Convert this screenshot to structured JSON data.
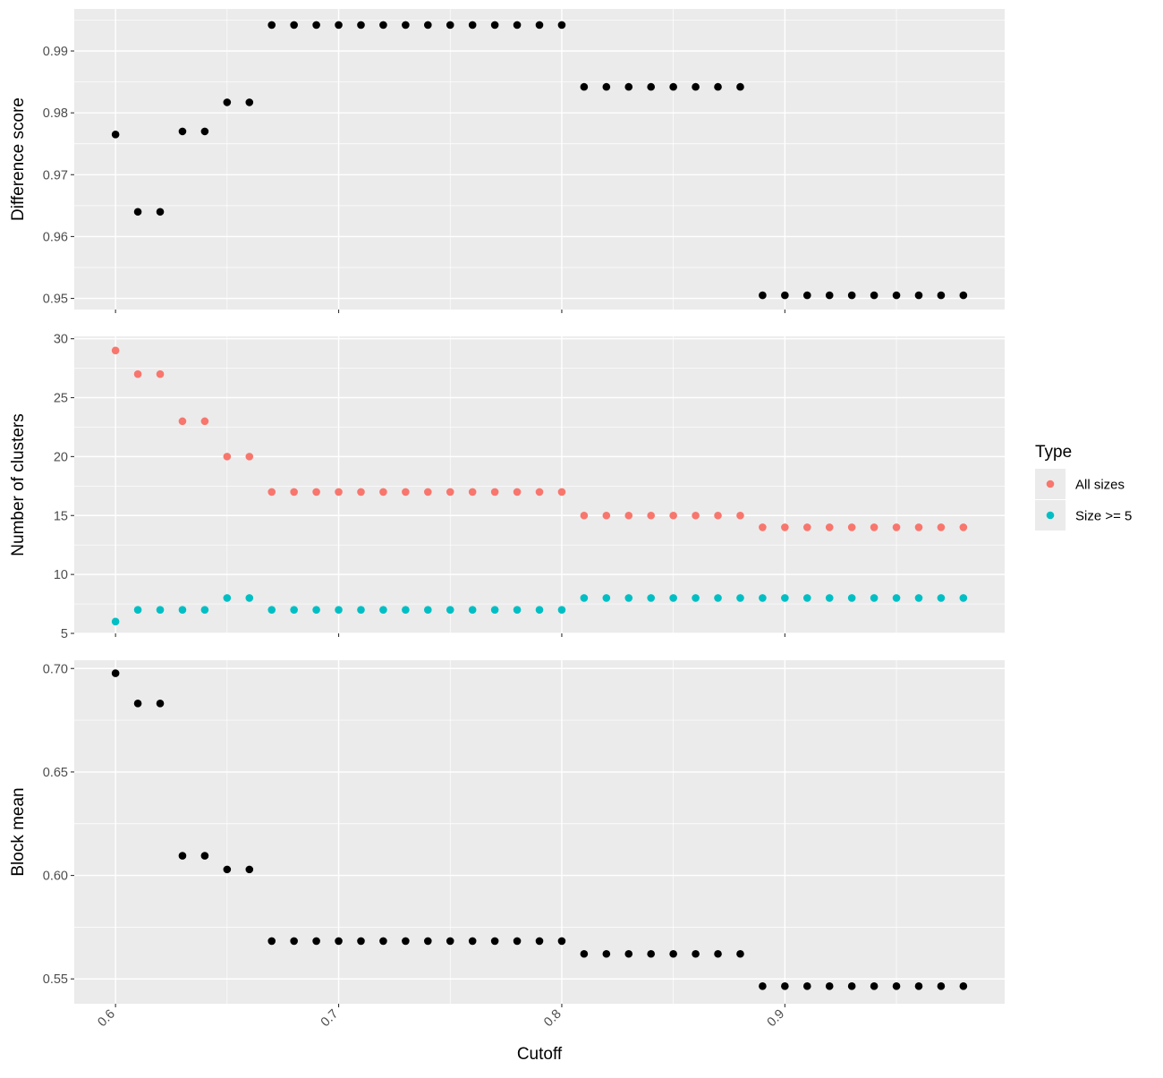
{
  "chart_data": {
    "type": "scatter",
    "xlabel": "Cutoff",
    "x_ticks": [
      "0.6",
      "0.7",
      "0.8",
      "0.9"
    ],
    "xlim": [
      0.5815,
      0.9985
    ],
    "grid": true,
    "panel_background": "#EBEBEB",
    "gridline_color": "#FFFFFF",
    "x": [
      0.6,
      0.61,
      0.62,
      0.63,
      0.64,
      0.65,
      0.66,
      0.67,
      0.68,
      0.69,
      0.7,
      0.71,
      0.72,
      0.73,
      0.74,
      0.75,
      0.76,
      0.77,
      0.78,
      0.79,
      0.8,
      0.81,
      0.82,
      0.83,
      0.84,
      0.85,
      0.86,
      0.87,
      0.88,
      0.89,
      0.9,
      0.91,
      0.92,
      0.93,
      0.94,
      0.95,
      0.96,
      0.97,
      0.98
    ],
    "panels": [
      {
        "ylabel": "Difference score",
        "ylim": [
          0.9482,
          0.9968
        ],
        "y_ticks": [
          "0.95",
          "0.96",
          "0.97",
          "0.98",
          "0.99"
        ],
        "series": [
          {
            "color": "#000000",
            "values": [
              0.9765,
              0.964,
              0.964,
              0.977,
              0.977,
              0.9817,
              0.9817,
              0.9942,
              0.9942,
              0.9942,
              0.9942,
              0.9942,
              0.9942,
              0.9942,
              0.9942,
              0.9942,
              0.9942,
              0.9942,
              0.9942,
              0.9942,
              0.9942,
              0.9842,
              0.9842,
              0.9842,
              0.9842,
              0.9842,
              0.9842,
              0.9842,
              0.9842,
              0.9505,
              0.9505,
              0.9505,
              0.9505,
              0.9505,
              0.9505,
              0.9505,
              0.9505,
              0.9505,
              0.9505
            ]
          }
        ]
      },
      {
        "ylabel": "Number of clusters",
        "ylim": [
          5,
          30.2
        ],
        "y_ticks": [
          "5",
          "10",
          "15",
          "20",
          "25",
          "30"
        ],
        "series": [
          {
            "name": "All sizes",
            "color": "#F8766D",
            "values": [
              29,
              27,
              27,
              23,
              23,
              20,
              20,
              17,
              17,
              17,
              17,
              17,
              17,
              17,
              17,
              17,
              17,
              17,
              17,
              17,
              17,
              15,
              15,
              15,
              15,
              15,
              15,
              15,
              15,
              14,
              14,
              14,
              14,
              14,
              14,
              14,
              14,
              14,
              14
            ]
          },
          {
            "name": "Size >= 5",
            "color": "#00BFC4",
            "values": [
              6,
              7,
              7,
              7,
              7,
              8,
              8,
              7,
              7,
              7,
              7,
              7,
              7,
              7,
              7,
              7,
              7,
              7,
              7,
              7,
              7,
              8,
              8,
              8,
              8,
              8,
              8,
              8,
              8,
              8,
              8,
              8,
              8,
              8,
              8,
              8,
              8,
              8,
              8
            ]
          }
        ]
      },
      {
        "ylabel": "Block mean",
        "ylim": [
          0.538,
          0.704
        ],
        "y_ticks": [
          "0.55",
          "0.60",
          "0.65",
          "0.70"
        ],
        "series": [
          {
            "color": "#000000",
            "values": [
              0.6977,
              0.6831,
              0.6831,
              0.6095,
              0.6095,
              0.6029,
              0.6029,
              0.5683,
              0.5683,
              0.5683,
              0.5683,
              0.5683,
              0.5683,
              0.5683,
              0.5683,
              0.5683,
              0.5683,
              0.5683,
              0.5683,
              0.5683,
              0.5683,
              0.5621,
              0.5621,
              0.5621,
              0.5621,
              0.5621,
              0.5621,
              0.5621,
              0.5621,
              0.5465,
              0.5465,
              0.5465,
              0.5465,
              0.5465,
              0.5465,
              0.5465,
              0.5465,
              0.5465,
              0.5465
            ]
          }
        ]
      }
    ],
    "legend": {
      "title": "Type",
      "position": "right",
      "entries": [
        {
          "label": "All sizes",
          "color": "#F8766D"
        },
        {
          "label": "Size >= 5",
          "color": "#00BFC4"
        }
      ]
    }
  }
}
